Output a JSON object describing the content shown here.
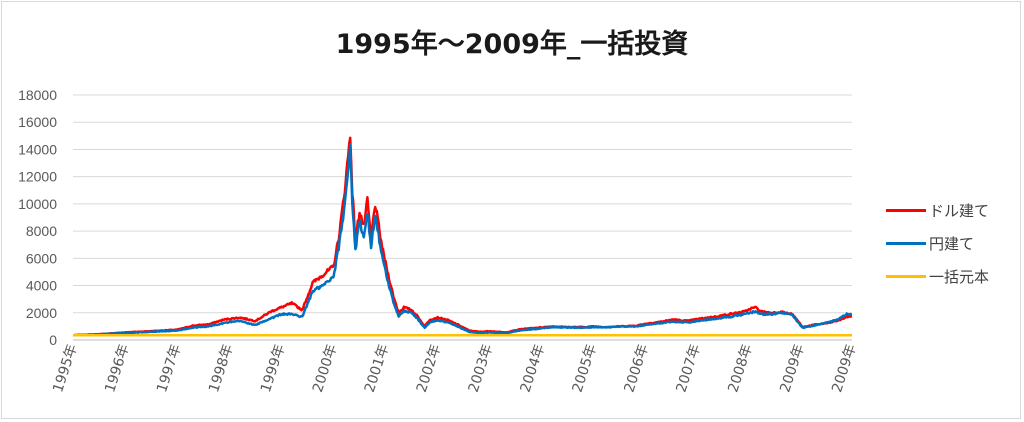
{
  "chart_data": {
    "type": "line",
    "title": "1995年～2009年_一括投資",
    "xlabel": "",
    "ylabel": "",
    "ylim": [
      0,
      18000
    ],
    "yticks": [
      "0",
      "2000",
      "4000",
      "6000",
      "8000",
      "10000",
      "12000",
      "14000",
      "16000",
      "18000"
    ],
    "xticks": [
      "1995年",
      "1996年",
      "1997年",
      "1998年",
      "1999年",
      "2000年",
      "2001年",
      "2002年",
      "2003年",
      "2004年",
      "2005年",
      "2006年",
      "2007年",
      "2008年",
      "2009年",
      "2009年"
    ],
    "grid": true,
    "legend_position": "right",
    "x_range": [
      1995.0,
      2009.95
    ],
    "series": [
      {
        "name": "ドル建て",
        "color": "#ff0000",
        "points": [
          [
            1995.0,
            350
          ],
          [
            1995.5,
            420
          ],
          [
            1996.0,
            560
          ],
          [
            1996.5,
            650
          ],
          [
            1997.0,
            760
          ],
          [
            1997.3,
            1050
          ],
          [
            1997.6,
            1150
          ],
          [
            1997.9,
            1500
          ],
          [
            1998.2,
            1650
          ],
          [
            1998.5,
            1400
          ],
          [
            1998.8,
            2100
          ],
          [
            1999.0,
            2400
          ],
          [
            1999.2,
            2700
          ],
          [
            1999.4,
            2200
          ],
          [
            1999.6,
            4200
          ],
          [
            1999.8,
            4800
          ],
          [
            2000.0,
            5400
          ],
          [
            2000.1,
            7500
          ],
          [
            2000.2,
            10500
          ],
          [
            2000.28,
            13500
          ],
          [
            2000.32,
            15100
          ],
          [
            2000.36,
            11000
          ],
          [
            2000.42,
            7200
          ],
          [
            2000.5,
            9500
          ],
          [
            2000.58,
            8300
          ],
          [
            2000.65,
            10200
          ],
          [
            2000.72,
            7500
          ],
          [
            2000.8,
            10000
          ],
          [
            2000.88,
            8000
          ],
          [
            2000.95,
            6500
          ],
          [
            2001.05,
            4800
          ],
          [
            2001.15,
            3200
          ],
          [
            2001.25,
            2000
          ],
          [
            2001.35,
            2400
          ],
          [
            2001.5,
            2200
          ],
          [
            2001.6,
            1800
          ],
          [
            2001.75,
            1000
          ],
          [
            2001.85,
            1500
          ],
          [
            2002.0,
            1650
          ],
          [
            2002.2,
            1450
          ],
          [
            2002.4,
            1100
          ],
          [
            2002.6,
            700
          ],
          [
            2002.8,
            600
          ],
          [
            2003.0,
            650
          ],
          [
            2003.3,
            550
          ],
          [
            2003.6,
            800
          ],
          [
            2003.9,
            900
          ],
          [
            2004.2,
            1000
          ],
          [
            2004.5,
            950
          ],
          [
            2004.8,
            950
          ],
          [
            2005.0,
            1000
          ],
          [
            2005.2,
            950
          ],
          [
            2005.5,
            1000
          ],
          [
            2005.8,
            1050
          ],
          [
            2006.0,
            1200
          ],
          [
            2006.3,
            1350
          ],
          [
            2006.5,
            1500
          ],
          [
            2006.8,
            1400
          ],
          [
            2007.0,
            1550
          ],
          [
            2007.3,
            1700
          ],
          [
            2007.6,
            1900
          ],
          [
            2007.9,
            2100
          ],
          [
            2008.0,
            2300
          ],
          [
            2008.1,
            2400
          ],
          [
            2008.2,
            2100
          ],
          [
            2008.4,
            2000
          ],
          [
            2008.6,
            2050
          ],
          [
            2008.8,
            1900
          ],
          [
            2008.9,
            1450
          ],
          [
            2009.0,
            950
          ],
          [
            2009.2,
            1100
          ],
          [
            2009.5,
            1250
          ],
          [
            2009.7,
            1450
          ],
          [
            2009.85,
            1700
          ],
          [
            2009.95,
            1750
          ]
        ]
      },
      {
        "name": "円建て",
        "color": "#0070c0",
        "points": [
          [
            1995.0,
            350
          ],
          [
            1995.5,
            420
          ],
          [
            1996.0,
            520
          ],
          [
            1996.5,
            600
          ],
          [
            1997.0,
            700
          ],
          [
            1997.3,
            900
          ],
          [
            1997.6,
            1000
          ],
          [
            1997.9,
            1250
          ],
          [
            1998.2,
            1400
          ],
          [
            1998.5,
            1100
          ],
          [
            1998.8,
            1600
          ],
          [
            1999.0,
            1900
          ],
          [
            1999.2,
            1900
          ],
          [
            1999.4,
            1700
          ],
          [
            1999.6,
            3600
          ],
          [
            1999.8,
            4000
          ],
          [
            2000.0,
            4600
          ],
          [
            2000.1,
            6800
          ],
          [
            2000.2,
            9500
          ],
          [
            2000.28,
            12500
          ],
          [
            2000.32,
            14400
          ],
          [
            2000.36,
            10000
          ],
          [
            2000.42,
            6600
          ],
          [
            2000.5,
            8800
          ],
          [
            2000.58,
            7600
          ],
          [
            2000.65,
            9400
          ],
          [
            2000.72,
            6900
          ],
          [
            2000.8,
            9300
          ],
          [
            2000.88,
            7300
          ],
          [
            2000.95,
            5800
          ],
          [
            2001.05,
            4200
          ],
          [
            2001.15,
            2800
          ],
          [
            2001.25,
            1750
          ],
          [
            2001.35,
            2150
          ],
          [
            2001.5,
            2000
          ],
          [
            2001.6,
            1600
          ],
          [
            2001.75,
            900
          ],
          [
            2001.85,
            1300
          ],
          [
            2002.0,
            1450
          ],
          [
            2002.2,
            1300
          ],
          [
            2002.4,
            950
          ],
          [
            2002.6,
            600
          ],
          [
            2002.8,
            520
          ],
          [
            2003.0,
            560
          ],
          [
            2003.3,
            480
          ],
          [
            2003.6,
            720
          ],
          [
            2003.9,
            820
          ],
          [
            2004.2,
            950
          ],
          [
            2004.5,
            920
          ],
          [
            2004.8,
            900
          ],
          [
            2005.0,
            950
          ],
          [
            2005.2,
            920
          ],
          [
            2005.5,
            980
          ],
          [
            2005.8,
            1000
          ],
          [
            2006.0,
            1100
          ],
          [
            2006.3,
            1250
          ],
          [
            2006.5,
            1350
          ],
          [
            2006.8,
            1300
          ],
          [
            2007.0,
            1400
          ],
          [
            2007.3,
            1550
          ],
          [
            2007.6,
            1700
          ],
          [
            2007.9,
            1900
          ],
          [
            2008.0,
            2000
          ],
          [
            2008.1,
            2100
          ],
          [
            2008.2,
            1900
          ],
          [
            2008.4,
            1900
          ],
          [
            2008.6,
            2000
          ],
          [
            2008.8,
            1850
          ],
          [
            2008.9,
            1350
          ],
          [
            2009.0,
            900
          ],
          [
            2009.2,
            1050
          ],
          [
            2009.5,
            1300
          ],
          [
            2009.7,
            1550
          ],
          [
            2009.85,
            1900
          ],
          [
            2009.95,
            1850
          ]
        ]
      },
      {
        "name": "一括元本",
        "color": "#ffc000",
        "points": [
          [
            1995.0,
            350
          ],
          [
            2009.95,
            350
          ]
        ]
      }
    ]
  }
}
